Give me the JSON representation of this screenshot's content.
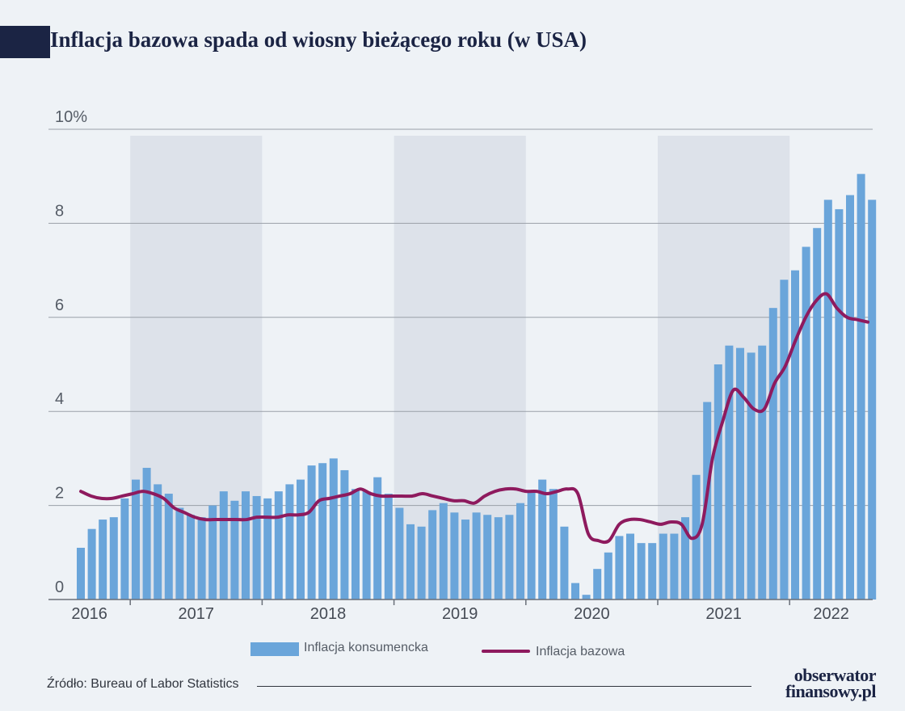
{
  "title": "Inflacja bazowa spada od wiosny bieżącego roku (w USA)",
  "source": "Źródło: Bureau of Labor Statistics",
  "brand": {
    "line1": "obserwator",
    "line2": "finansowy.pl"
  },
  "colors": {
    "bars": "#6aa5da",
    "line": "#8e1a5e",
    "shade": "#dde2ea",
    "grid": "#9aa0a8",
    "title": "#1b2444"
  },
  "chart_data": {
    "type": "bar",
    "title": "Inflacja bazowa spada od wiosny bieżącego roku (w USA)",
    "ylim": [
      0,
      10
    ],
    "y_ticks": [
      "0",
      "2",
      "4",
      "6",
      "8",
      "10%"
    ],
    "year_labels": [
      "2016",
      "2017",
      "2018",
      "2019",
      "2020",
      "2021",
      "2022"
    ],
    "shaded_years": [
      "2017",
      "2019",
      "2021"
    ],
    "grid": true,
    "legend": {
      "placement": "bottom",
      "bars": "Inflacja konsumencka",
      "line": "Inflacja bazowa"
    },
    "series": [
      {
        "name": "Inflacja konsumencka",
        "type": "bar",
        "values": [
          1.1,
          1.5,
          1.7,
          1.75,
          2.15,
          2.55,
          2.8,
          2.45,
          2.25,
          1.95,
          1.8,
          1.75,
          2.0,
          2.3,
          2.1,
          2.3,
          2.2,
          2.15,
          2.3,
          2.45,
          2.55,
          2.85,
          2.9,
          3.0,
          2.75,
          2.35,
          2.3,
          2.6,
          2.25,
          1.95,
          1.6,
          1.55,
          1.9,
          2.05,
          1.85,
          1.7,
          1.85,
          1.8,
          1.75,
          1.8,
          2.05,
          2.3,
          2.55,
          2.35,
          1.55,
          0.35,
          0.1,
          0.65,
          1.0,
          1.35,
          1.4,
          1.2,
          1.2,
          1.4,
          1.4,
          1.75,
          2.65,
          4.2,
          5.0,
          5.4,
          5.35,
          5.25,
          5.4,
          6.2,
          6.8,
          7.0,
          7.5,
          7.9,
          8.5,
          8.3,
          8.6,
          9.05,
          8.5
        ]
      },
      {
        "name": "Inflacja bazowa",
        "type": "line",
        "values": [
          2.3,
          2.2,
          2.15,
          2.15,
          2.2,
          2.25,
          2.3,
          2.25,
          2.15,
          1.95,
          1.85,
          1.75,
          1.7,
          1.7,
          1.7,
          1.7,
          1.7,
          1.75,
          1.75,
          1.75,
          1.8,
          1.8,
          1.85,
          2.1,
          2.15,
          2.2,
          2.25,
          2.35,
          2.25,
          2.2,
          2.2,
          2.2,
          2.2,
          2.25,
          2.2,
          2.15,
          2.1,
          2.1,
          2.05,
          2.2,
          2.3,
          2.35,
          2.35,
          2.3,
          2.3,
          2.25,
          2.3,
          2.35,
          2.25,
          1.4,
          1.25,
          1.25,
          1.6,
          1.7,
          1.7,
          1.65,
          1.6,
          1.65,
          1.6,
          1.3,
          1.6,
          3.0,
          3.8,
          4.45,
          4.3,
          4.05,
          4.05,
          4.6,
          4.95,
          5.5,
          6.0,
          6.35,
          6.5,
          6.2,
          6.0,
          5.95,
          5.9
        ]
      }
    ]
  }
}
